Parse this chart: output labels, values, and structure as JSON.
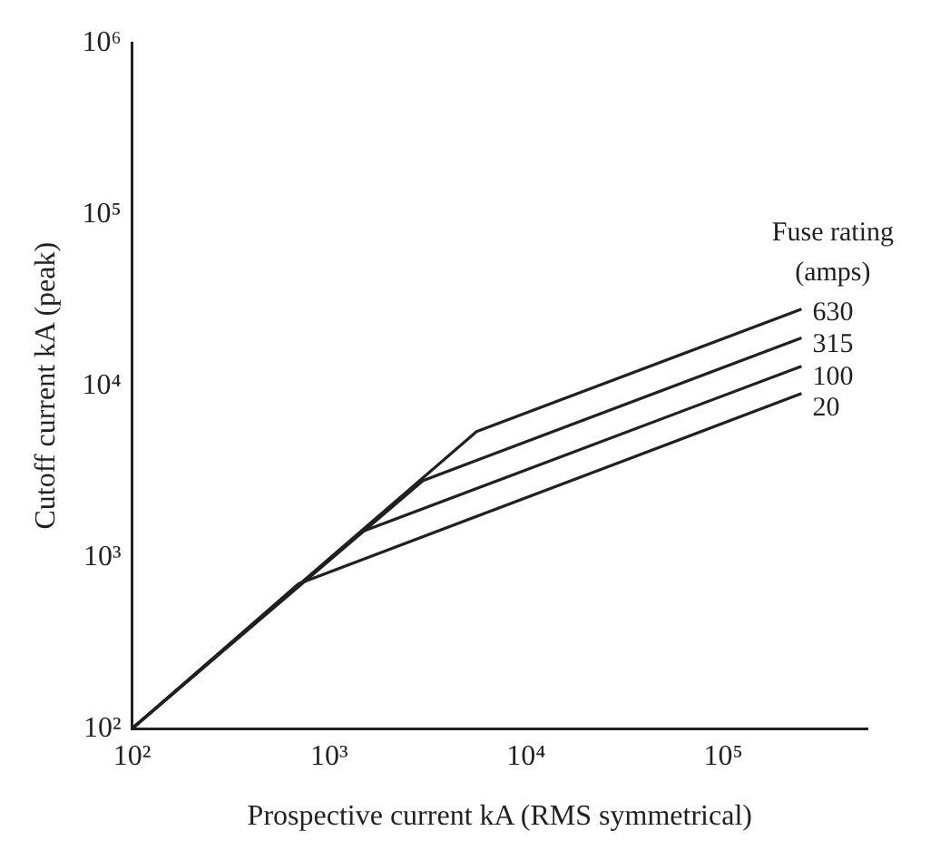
{
  "chart_data": {
    "type": "line",
    "xlabel": "Prospective current kA (RMS symmetrical)",
    "ylabel": "Cutoff current kA (peak)",
    "legend_title": "Fuse rating (amps)",
    "log": "xy",
    "grid": false,
    "legend": false,
    "marker": "none",
    "line_style": "solid",
    "xlim": [
      100,
      540000
    ],
    "ylim": [
      100,
      1000000
    ],
    "xticks": [
      {
        "value": 100,
        "label": "10²"
      },
      {
        "value": 1000,
        "label": "10³"
      },
      {
        "value": 10000,
        "label": "10⁴"
      },
      {
        "value": 100000,
        "label": "10⁵"
      }
    ],
    "yticks": [
      {
        "value": 100,
        "label": "10²"
      },
      {
        "value": 1000,
        "label": "10³"
      },
      {
        "value": 10000,
        "label": "10⁴"
      },
      {
        "value": 100000,
        "label": "10⁵"
      },
      {
        "value": 1000000,
        "label": "10⁶"
      }
    ],
    "series": [
      {
        "name": "630",
        "color": "#231f20",
        "x": [
          100,
          5600,
          250000
        ],
        "values": [
          100,
          5400,
          28000
        ]
      },
      {
        "name": "315",
        "color": "#231f20",
        "x": [
          100,
          3000,
          250000
        ],
        "values": [
          100,
          2800,
          19000
        ]
      },
      {
        "name": "100",
        "color": "#231f20",
        "x": [
          100,
          1450,
          250000
        ],
        "values": [
          100,
          1400,
          13000
        ]
      },
      {
        "name": "20",
        "color": "#231f20",
        "x": [
          100,
          700,
          250000
        ],
        "values": [
          100,
          700,
          9000
        ]
      }
    ]
  }
}
